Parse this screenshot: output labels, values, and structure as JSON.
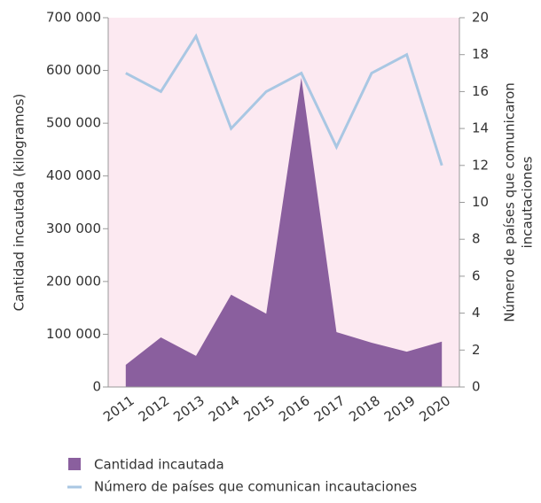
{
  "chart_data": {
    "type": "area-line",
    "ylabel": "Cantidad incautada (kilogramos)",
    "y2label": [
      "Número de países que comunicaron",
      "incautaciones"
    ],
    "categories": [
      "2011",
      "2012",
      "2013",
      "2014",
      "2015",
      "2016",
      "2017",
      "2018",
      "2019",
      "2020"
    ],
    "series": [
      {
        "name": "Cantidad incautada",
        "color": "#8a5f9e",
        "values": [
          42000,
          94000,
          59000,
          175000,
          139000,
          586000,
          104000,
          84000,
          67000,
          86000
        ]
      },
      {
        "name": "Número de países que comunican incautaciones",
        "color": "#a9c7e3",
        "axis": "y2",
        "values": [
          17,
          16,
          19,
          14,
          16,
          17,
          13,
          17,
          18,
          12
        ]
      }
    ],
    "ylim": [
      0,
      700000
    ],
    "yticks": [
      0,
      {
        "value": 100000,
        "label": "100 000"
      },
      {
        "value": 200000,
        "label": "200 000"
      },
      {
        "value": 300000,
        "label": "300 000"
      },
      {
        "value": 400000,
        "label": "400 000"
      },
      {
        "value": 500000,
        "label": "500 000"
      },
      {
        "value": 600000,
        "label": "600 000"
      },
      {
        "value": 700000,
        "label": "700 000"
      }
    ],
    "y2lim": [
      0,
      20
    ],
    "y2ticks": [
      0,
      2,
      4,
      6,
      8,
      10,
      12,
      14,
      16,
      18,
      20
    ],
    "background": "#fce9f1"
  }
}
